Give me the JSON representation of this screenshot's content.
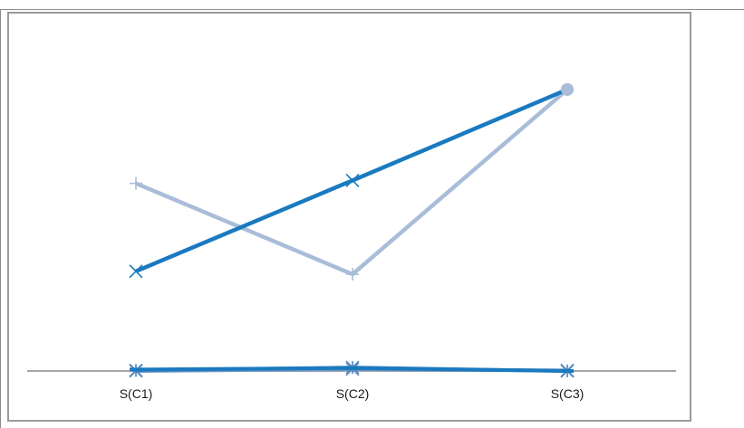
{
  "chart_data": {
    "type": "line",
    "title": "",
    "xlabel": "",
    "ylabel": "",
    "categories": [
      "S(C1)",
      "S(C2)",
      "S(C3)"
    ],
    "ylim": [
      0,
      10
    ],
    "grid": false,
    "legend": "none",
    "series": [
      {
        "values": [
          3.4,
          6.5,
          9.6
        ],
        "color": "#1a7ac0",
        "marker": "x"
      },
      {
        "values": [
          6.4,
          3.3,
          9.6
        ],
        "color": "#a9bdd9",
        "marker": "plus"
      },
      {
        "values": [
          0.05,
          0.1,
          0.0
        ],
        "color": "#1a7ac0",
        "marker": "dash"
      },
      {
        "values": [
          0.02,
          0.12,
          0.0
        ],
        "color": "#4f86bd",
        "marker": "star"
      },
      {
        "values": [
          0.0,
          0.06,
          0.02
        ],
        "color": "#6f97c6",
        "marker": "x"
      }
    ]
  }
}
